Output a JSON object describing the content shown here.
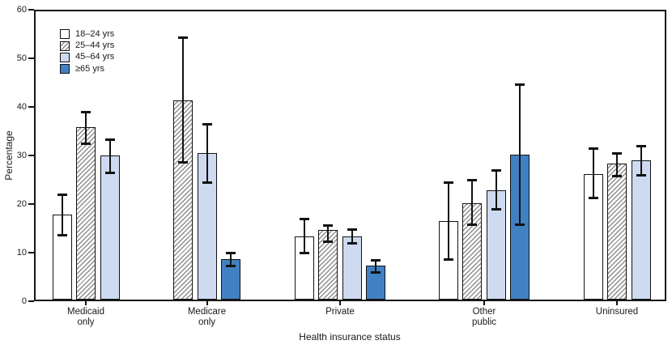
{
  "chart_data": {
    "type": "bar",
    "title": "",
    "xlabel": "Health insurance status",
    "ylabel": "Percentage",
    "ylim": [
      0,
      60
    ],
    "yticks": [
      0,
      10,
      20,
      30,
      40,
      50,
      60
    ],
    "grid": false,
    "legend_position": "top-left-inside",
    "error_bars": true,
    "categories": [
      "Medicaid only",
      "Medicare only",
      "Private",
      "Other public",
      "Uninsured"
    ],
    "category_label_lines": [
      [
        "Medicaid",
        "only"
      ],
      [
        "Medicare",
        "only"
      ],
      [
        "Private"
      ],
      [
        "Other",
        "public"
      ],
      [
        "Uninsured"
      ]
    ],
    "series": [
      {
        "name": "18–24 yrs",
        "style": "white",
        "color": "#ffffff",
        "values": [
          17.9,
          null,
          13.4,
          16.5,
          26.2
        ],
        "ci_low": [
          13.6,
          null,
          9.9,
          8.6,
          21.2
        ],
        "ci_high": [
          22.0,
          null,
          17.0,
          24.4,
          31.4
        ]
      },
      {
        "name": "25–44 yrs",
        "style": "hatch",
        "color": "hatched",
        "values": [
          35.8,
          41.4,
          14.6,
          20.1,
          28.3
        ],
        "ci_low": [
          32.5,
          28.6,
          12.2,
          15.7,
          25.8
        ],
        "ci_high": [
          39.0,
          54.3,
          15.6,
          24.9,
          30.5
        ]
      },
      {
        "name": "45–64 yrs",
        "style": "light",
        "color": "#cedaf0",
        "values": [
          30.0,
          30.5,
          13.3,
          22.9,
          29.0
        ],
        "ci_low": [
          26.4,
          24.5,
          12.0,
          19.0,
          26.0
        ],
        "ci_high": [
          33.2,
          36.5,
          14.8,
          26.9,
          31.9
        ]
      },
      {
        "name": "≥65 yrs",
        "style": "dark",
        "color": "#4181c3",
        "values": [
          null,
          8.6,
          7.4,
          30.2,
          null
        ],
        "ci_low": [
          null,
          7.3,
          6.0,
          15.7,
          null
        ],
        "ci_high": [
          null,
          9.9,
          8.4,
          44.6,
          null
        ]
      }
    ],
    "colors": {
      "axis": "#161616",
      "bar_border": "#121212",
      "light_blue": "#cedaf0",
      "dark_blue": "#4181c3",
      "hatch_gray": "#8e8e8e"
    }
  }
}
